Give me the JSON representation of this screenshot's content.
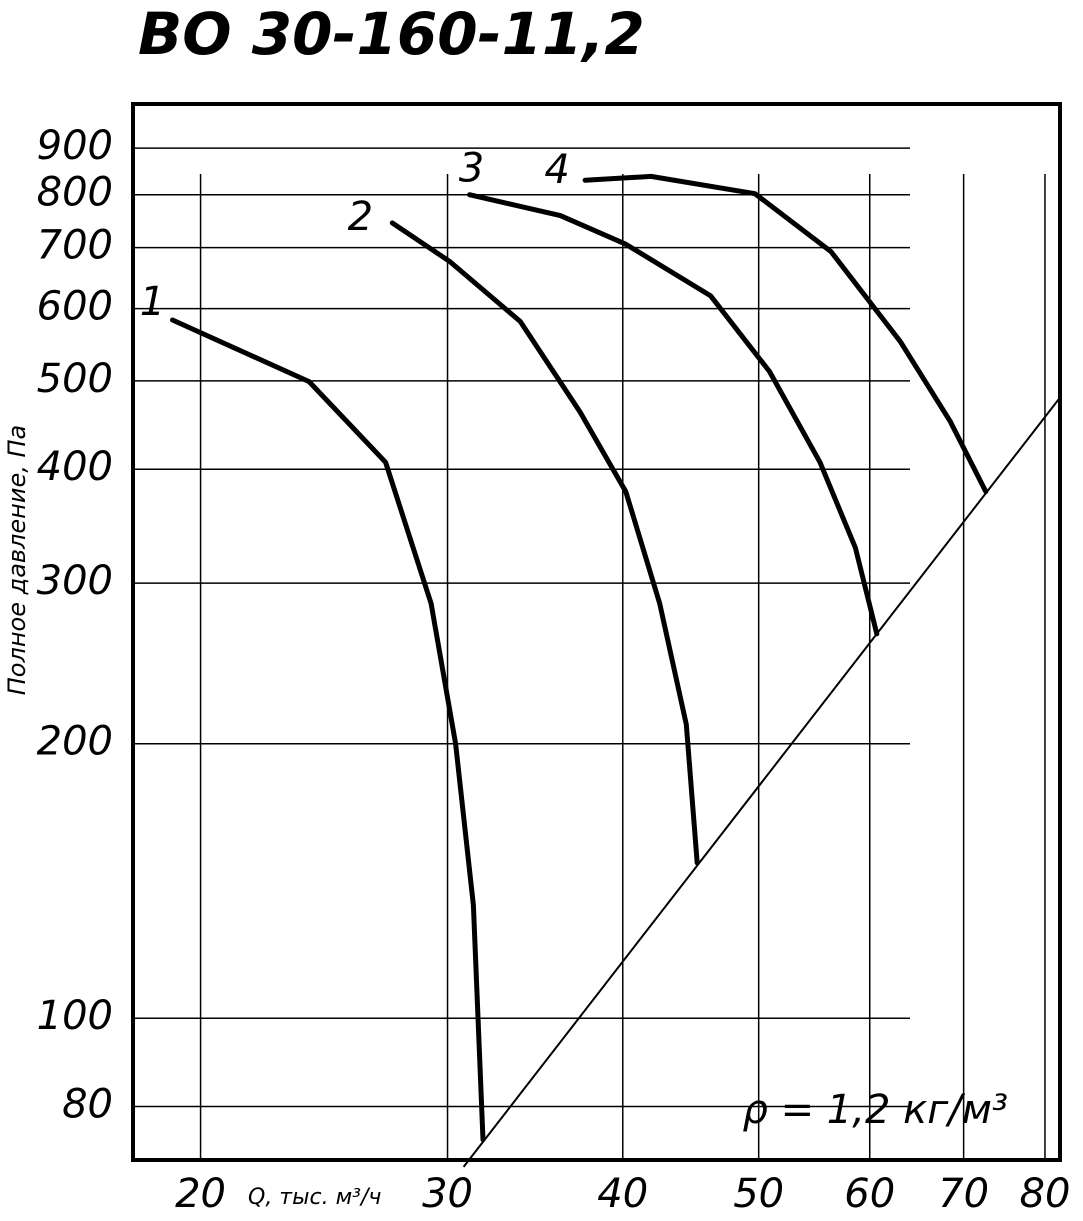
{
  "chart_data": {
    "type": "line",
    "title": "ВО 30-160-11,2",
    "xlabel": "Q, тыс. м³/ч",
    "ylabel": "Полное давление, Па",
    "annotation": "ρ = 1,2 кг/м³",
    "xscale": "log",
    "yscale": "log",
    "grid": true,
    "xlim": [
      17.9,
      82
    ],
    "ylim": [
      69.9,
      1006
    ],
    "xticks": [
      20,
      30,
      40,
      50,
      60,
      70,
      80
    ],
    "yticks": [
      80,
      100,
      200,
      300,
      400,
      500,
      600,
      700,
      800,
      900
    ],
    "series": [
      {
        "name": "1",
        "color": "#000000",
        "x": [
          19.1,
          23.9,
          27.1,
          29.2,
          30.4,
          31.3,
          31.8
        ],
        "values": [
          583,
          499,
          407,
          285,
          200,
          133,
          73.6
        ]
      },
      {
        "name": "2",
        "color": "#000000",
        "x": [
          27.4,
          30.1,
          33.8,
          37.3,
          40.2,
          42.5,
          44.4,
          45.2
        ],
        "values": [
          745,
          676,
          581,
          462,
          378,
          285,
          210,
          148
        ]
      },
      {
        "name": "3",
        "color": "#000000",
        "x": [
          31.1,
          36.1,
          40.2,
          46.2,
          50.9,
          55.3,
          58.6,
          60.7
        ],
        "values": [
          800,
          759,
          706,
          620,
          512,
          407,
          328,
          264
        ]
      },
      {
        "name": "4",
        "color": "#000000",
        "x": [
          37.6,
          41.9,
          49.7,
          56.3,
          63.1,
          68.5,
          72.6
        ],
        "values": [
          830,
          838,
          802,
          693,
          552,
          451,
          378
        ]
      }
    ],
    "system_line": {
      "color": "#000000",
      "x": [
        30.8,
        81.8
      ],
      "values": [
        68.7,
        477
      ]
    }
  }
}
